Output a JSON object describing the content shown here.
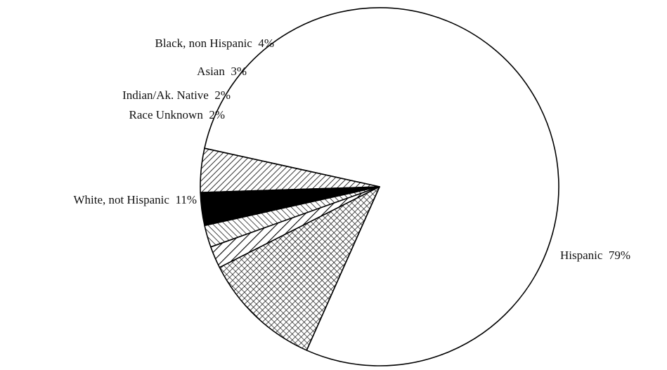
{
  "chart_data": {
    "type": "pie",
    "title": "",
    "start_angle_deg": 246,
    "direction": "counterclockwise",
    "slices": [
      {
        "label": "Hispanic",
        "value": 79,
        "display": "Hispanic  79%",
        "pattern": "none"
      },
      {
        "label": "Black, non Hispanic",
        "value": 4,
        "display": "Black, non Hispanic  4%",
        "pattern": "hatch-diagonal-dense"
      },
      {
        "label": "Asian",
        "value": 3,
        "display": "Asian  3%",
        "pattern": "solid-black"
      },
      {
        "label": "Indian/Ak. Native",
        "value": 2,
        "display": "Indian/Ak. Native  2%",
        "pattern": "hatch-crossed"
      },
      {
        "label": "Race Unknown",
        "value": 2,
        "display": "Race Unknown  2%",
        "pattern": "hatch-diagonal-wide"
      },
      {
        "label": "White, not Hispanic",
        "value": 11,
        "display": "White, not Hispanic  11%",
        "pattern": "crosshatch"
      }
    ],
    "legend": "none"
  }
}
